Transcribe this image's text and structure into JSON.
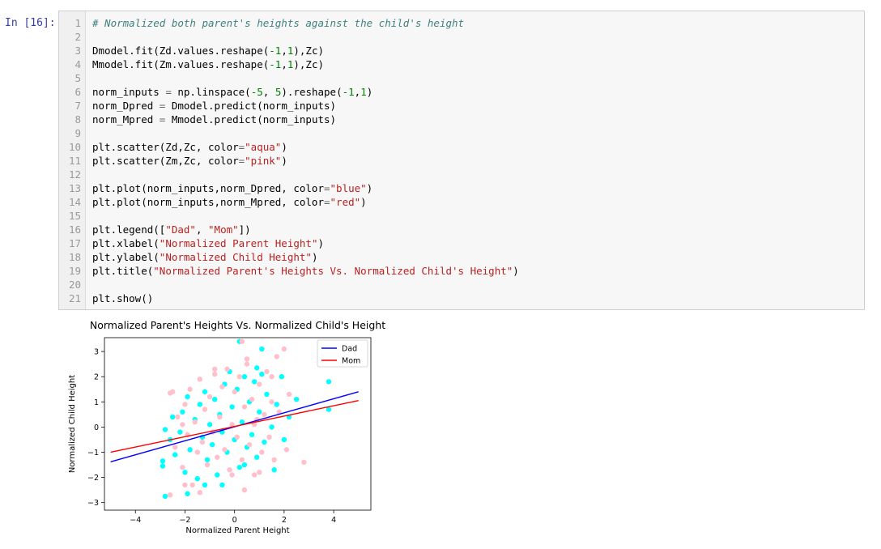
{
  "prompt": "In [16]:",
  "code_lines": [
    {
      "n": "1",
      "code": "# Normalized both parent's heights against the child's height"
    },
    {
      "n": "2",
      "code": ""
    },
    {
      "n": "3",
      "code": "Dmodel.fit(Zd.values.reshape(-1,1),Zc)"
    },
    {
      "n": "4",
      "code": "Mmodel.fit(Zm.values.reshape(-1,1),Zc)"
    },
    {
      "n": "5",
      "code": ""
    },
    {
      "n": "6",
      "code": "norm_inputs = np.linspace(-5, 5).reshape(-1,1)"
    },
    {
      "n": "7",
      "code": "norm_Dpred = Dmodel.predict(norm_inputs)"
    },
    {
      "n": "8",
      "code": "norm_Mpred = Mmodel.predict(norm_inputs)"
    },
    {
      "n": "9",
      "code": ""
    },
    {
      "n": "10",
      "code": "plt.scatter(Zd,Zc, color=\"aqua\")"
    },
    {
      "n": "11",
      "code": "plt.scatter(Zm,Zc, color=\"pink\")"
    },
    {
      "n": "12",
      "code": ""
    },
    {
      "n": "13",
      "code": "plt.plot(norm_inputs,norm_Dpred, color=\"blue\")"
    },
    {
      "n": "14",
      "code": "plt.plot(norm_inputs,norm_Mpred, color=\"red\")"
    },
    {
      "n": "15",
      "code": ""
    },
    {
      "n": "16",
      "code": "plt.legend([\"Dad\", \"Mom\"])"
    },
    {
      "n": "17",
      "code": "plt.xlabel(\"Normalized Parent Height\")"
    },
    {
      "n": "18",
      "code": "plt.ylabel(\"Normalized Child Height\")"
    },
    {
      "n": "19",
      "code": "plt.title(\"Normalized Parent's Heights Vs. Normalized Child's Height\")"
    },
    {
      "n": "20",
      "code": ""
    },
    {
      "n": "21",
      "code": "plt.show()"
    }
  ],
  "chart_data": {
    "type": "scatter",
    "title": "Normalized Parent's Heights Vs. Normalized Child's Height",
    "xlabel": "Normalized Parent Height",
    "ylabel": "Normalized Child Height",
    "xlim": [
      -5.25,
      5.5
    ],
    "ylim": [
      -3.3,
      3.55
    ],
    "xticks": [
      -4,
      -2,
      0,
      2,
      4
    ],
    "xtick_labels": [
      "−4",
      "−2",
      "0",
      "2",
      "4"
    ],
    "yticks": [
      -3,
      -2,
      -1,
      0,
      1,
      2,
      3
    ],
    "ytick_labels": [
      "−3",
      "−2",
      "−1",
      "0",
      "1",
      "2",
      "3"
    ],
    "legend": {
      "placement": "top-right",
      "entries": [
        "Dad",
        "Mom"
      ]
    },
    "lines": [
      {
        "name": "Dad",
        "color": "#0000ff",
        "x": [
          -5,
          5
        ],
        "y": [
          -1.38,
          1.4
        ]
      },
      {
        "name": "Mom",
        "color": "#ff0000",
        "x": [
          -5,
          5
        ],
        "y": [
          -1.0,
          1.05
        ]
      }
    ],
    "scatter": [
      {
        "color": "#00ffff",
        "points": [
          [
            -2.8,
            -2.75
          ],
          [
            -2.9,
            -1.35
          ],
          [
            -2.9,
            -1.55
          ],
          [
            -2.8,
            -0.1
          ],
          [
            -2.5,
            0.4
          ],
          [
            -2.6,
            -0.5
          ],
          [
            -2.4,
            -1.1
          ],
          [
            -2.2,
            -0.2
          ],
          [
            -2.1,
            0.6
          ],
          [
            -2.0,
            -1.8
          ],
          [
            -1.9,
            1.2
          ],
          [
            -1.8,
            -0.9
          ],
          [
            -1.6,
            0.3
          ],
          [
            -1.5,
            -2.05
          ],
          [
            -1.4,
            0.9
          ],
          [
            -1.3,
            -0.4
          ],
          [
            -1.2,
            1.4
          ],
          [
            -1.1,
            -1.3
          ],
          [
            -1.0,
            0.1
          ],
          [
            -0.9,
            -0.7
          ],
          [
            -0.8,
            1.1
          ],
          [
            -0.7,
            -1.9
          ],
          [
            -0.6,
            0.5
          ],
          [
            -0.5,
            -0.2
          ],
          [
            -0.4,
            1.7
          ],
          [
            -0.3,
            -1.0
          ],
          [
            -0.2,
            2.2
          ],
          [
            -0.1,
            0.8
          ],
          [
            0.0,
            -0.5
          ],
          [
            0.1,
            1.5
          ],
          [
            0.2,
            -1.6
          ],
          [
            0.3,
            0.2
          ],
          [
            0.4,
            2.0
          ],
          [
            0.5,
            -0.8
          ],
          [
            0.6,
            1.0
          ],
          [
            0.7,
            -0.3
          ],
          [
            0.8,
            1.8
          ],
          [
            0.9,
            -1.2
          ],
          [
            1.0,
            0.6
          ],
          [
            1.1,
            2.1
          ],
          [
            1.2,
            -0.6
          ],
          [
            1.3,
            1.3
          ],
          [
            1.5,
            0.0
          ],
          [
            1.6,
            -1.7
          ],
          [
            1.7,
            0.9
          ],
          [
            1.9,
            2.0
          ],
          [
            2.0,
            -0.5
          ],
          [
            2.2,
            0.4
          ],
          [
            2.5,
            1.1
          ],
          [
            3.8,
            1.8
          ],
          [
            3.8,
            0.7
          ],
          [
            0.2,
            3.4
          ],
          [
            -1.9,
            -2.65
          ],
          [
            1.1,
            3.1
          ],
          [
            -0.5,
            -2.3
          ],
          [
            0.9,
            2.35
          ],
          [
            -1.2,
            -2.3
          ],
          [
            0.4,
            -1.5
          ]
        ]
      },
      {
        "color": "#ffc0cb",
        "points": [
          [
            -2.6,
            -2.7
          ],
          [
            -2.5,
            1.4
          ],
          [
            -2.6,
            1.35
          ],
          [
            -2.3,
            0.4
          ],
          [
            -2.4,
            -0.8
          ],
          [
            -2.1,
            -1.6
          ],
          [
            -2.0,
            0.9
          ],
          [
            -1.9,
            -0.3
          ],
          [
            -1.8,
            1.5
          ],
          [
            -1.7,
            -2.3
          ],
          [
            -1.6,
            0.2
          ],
          [
            -1.5,
            -1.0
          ],
          [
            -1.4,
            1.9
          ],
          [
            -1.3,
            -0.6
          ],
          [
            -1.2,
            0.7
          ],
          [
            -1.1,
            -1.5
          ],
          [
            -1.0,
            1.2
          ],
          [
            -0.9,
            -0.2
          ],
          [
            -0.8,
            2.1
          ],
          [
            -0.7,
            -1.2
          ],
          [
            -0.6,
            0.4
          ],
          [
            -0.5,
            1.6
          ],
          [
            -0.4,
            -0.9
          ],
          [
            -0.3,
            2.3
          ],
          [
            -0.2,
            -1.7
          ],
          [
            -0.1,
            0.1
          ],
          [
            0.0,
            1.4
          ],
          [
            0.1,
            -0.4
          ],
          [
            0.2,
            2.0
          ],
          [
            0.3,
            -1.3
          ],
          [
            0.4,
            0.8
          ],
          [
            0.5,
            2.5
          ],
          [
            0.6,
            -0.7
          ],
          [
            0.7,
            1.1
          ],
          [
            0.8,
            -1.9
          ],
          [
            0.9,
            0.3
          ],
          [
            1.0,
            1.7
          ],
          [
            1.1,
            -1.0
          ],
          [
            1.2,
            0.5
          ],
          [
            1.3,
            2.2
          ],
          [
            1.4,
            -0.4
          ],
          [
            1.5,
            1.0
          ],
          [
            1.6,
            -1.3
          ],
          [
            1.7,
            2.8
          ],
          [
            1.8,
            0.6
          ],
          [
            2.0,
            3.1
          ],
          [
            2.1,
            -0.9
          ],
          [
            2.2,
            1.3
          ],
          [
            2.8,
            -1.4
          ],
          [
            0.3,
            3.4
          ],
          [
            -2.0,
            -2.3
          ],
          [
            -1.4,
            -2.6
          ],
          [
            0.4,
            -2.5
          ],
          [
            1.0,
            -1.8
          ],
          [
            0.5,
            2.7
          ],
          [
            -0.8,
            2.3
          ],
          [
            -2.1,
            0.1
          ],
          [
            1.5,
            2.0
          ],
          [
            -0.1,
            -1.9
          ],
          [
            0.8,
            0.1
          ]
        ]
      }
    ]
  }
}
